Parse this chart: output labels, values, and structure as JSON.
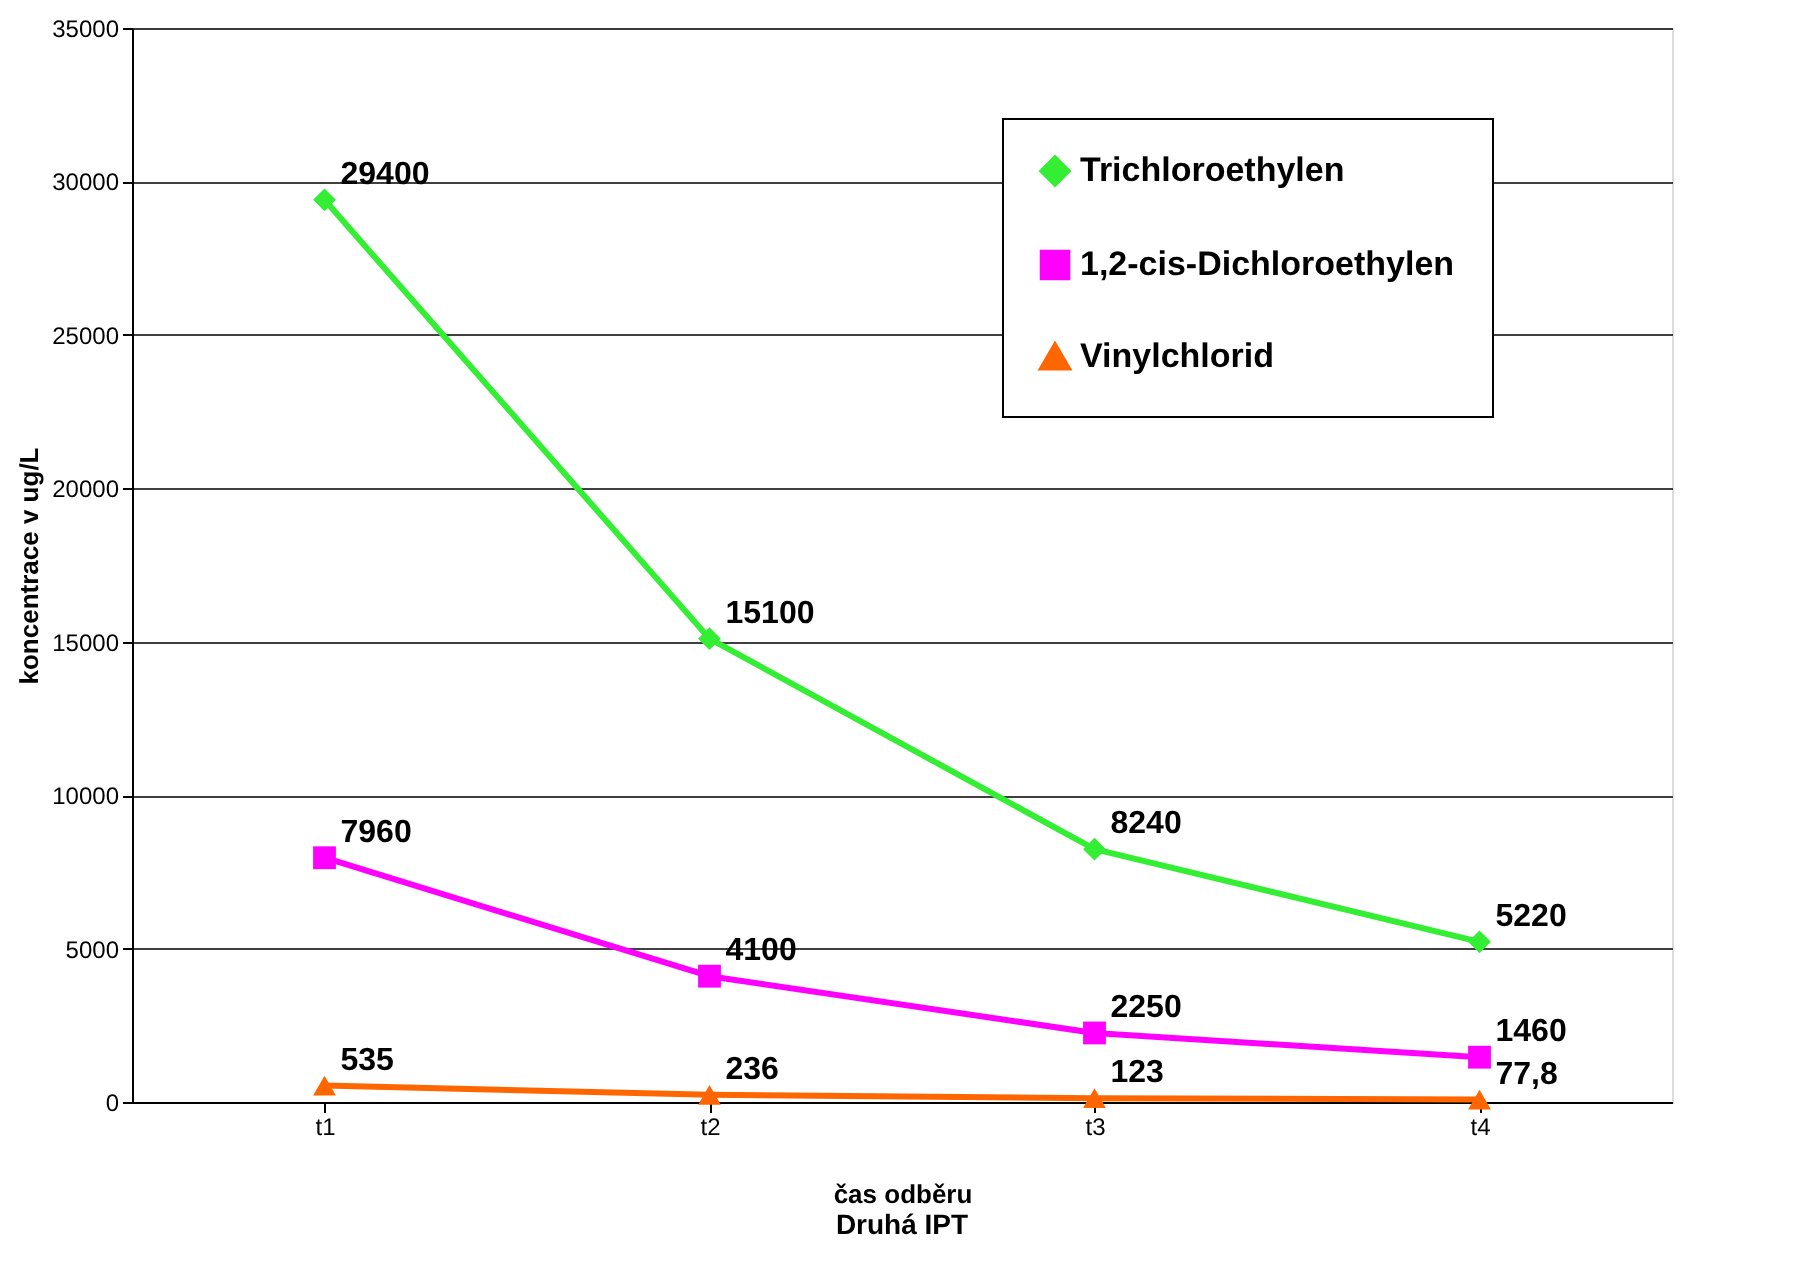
{
  "chart_data": {
    "type": "line",
    "categories": [
      "t1",
      "t2",
      "t3",
      "t4"
    ],
    "xlabel": "čas odběru",
    "ylabel": "koncentrace v ug/L",
    "annotations": [
      "Druhá IPT"
    ],
    "ylim": [
      0,
      35000
    ],
    "yticks": [
      0,
      5000,
      10000,
      15000,
      20000,
      25000,
      30000,
      35000
    ],
    "grid": "y",
    "legend": "top right",
    "series": [
      {
        "name": "Trichloroethylen",
        "color": "#33ee33",
        "marker": "diamond",
        "values": [
          29400,
          15100,
          8240,
          5220
        ],
        "value_labels": [
          "29400",
          "15100",
          "8240",
          "5220"
        ]
      },
      {
        "name": "1,2-cis-Dichloroethylen",
        "color": "#ff00ff",
        "marker": "square",
        "values": [
          7960,
          4100,
          2250,
          1460
        ],
        "value_labels": [
          "7960",
          "4100",
          "2250",
          "1460"
        ]
      },
      {
        "name": "Vinylchlorid",
        "color": "#ff6600",
        "marker": "triangle",
        "values": [
          535,
          236,
          123,
          77.8
        ],
        "value_labels": [
          "535",
          "236",
          "123",
          "77,8"
        ]
      }
    ]
  }
}
